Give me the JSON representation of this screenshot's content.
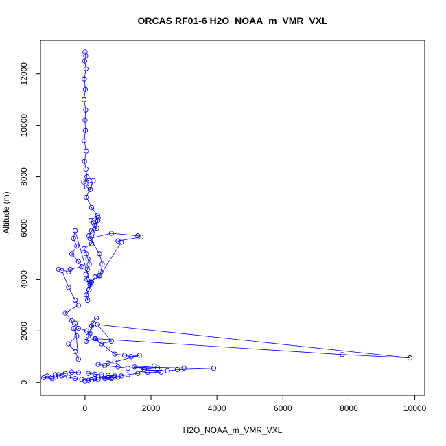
{
  "chart_data": {
    "type": "scatter",
    "title": "ORCAS RF01-6 H2O_NOAA_m_VMR_VXL",
    "xlabel": "H2O_NOAA_m_VMR_VXL",
    "ylabel": "Altitude (m)",
    "xlim": [
      -1350,
      10300
    ],
    "ylim": [
      -500,
      13300
    ],
    "xticks": [
      0,
      2000,
      4000,
      6000,
      8000,
      10000
    ],
    "yticks": [
      0,
      2000,
      4000,
      6000,
      8000,
      10000,
      12000
    ],
    "xtick_labels": [
      "0",
      "2000",
      "4000",
      "6000",
      "8000",
      "10000"
    ],
    "ytick_labels": [
      "0",
      "2000",
      "4000",
      "6000",
      "8000",
      "10000",
      "12000"
    ],
    "grid": false,
    "legend": "none",
    "marker": "open-circle",
    "connect_points": true,
    "colors": {
      "series": "#0000ff",
      "axis": "#000000"
    },
    "series": [
      {
        "x": [
          0,
          20,
          -10,
          30,
          -20,
          10,
          -30,
          20,
          0,
          15,
          -25,
          40,
          -15,
          30,
          60,
          -40,
          120,
          50,
          160,
          250,
          40,
          200,
          380,
          180,
          260,
          300,
          200,
          390,
          120,
          360,
          400,
          200,
          -30,
          40,
          90,
          130,
          70,
          30,
          60,
          150,
          120,
          40,
          80,
          120,
          200,
          300,
          420,
          480,
          520,
          440,
          150,
          800,
          1600,
          1700,
          1000,
          1100,
          450,
          150,
          -300,
          -350,
          -250,
          -400,
          -200,
          -100,
          -450,
          -500,
          -800,
          -700,
          -500,
          -300,
          -200,
          -600,
          -400,
          -350,
          -250,
          -500,
          -300,
          -200,
          -300,
          -200,
          50,
          150,
          250,
          350,
          200,
          100,
          40,
          300,
          500,
          800,
          380,
          9850,
          7800,
          320,
          700,
          900,
          1200,
          1400,
          1650,
          900,
          700,
          400,
          600,
          1000,
          1300,
          2100,
          2200,
          1700,
          2500,
          2800,
          3900,
          3000,
          1500,
          1800,
          2300,
          1900,
          1600,
          1300,
          1100,
          900,
          700,
          600,
          800,
          400,
          300,
          200,
          100,
          -100,
          -300,
          -500,
          -700,
          -900,
          -1000,
          -1150,
          -1250,
          -1000,
          -900,
          -800,
          -600,
          -400,
          -200,
          100,
          300,
          500,
          700,
          900,
          1000,
          800,
          600,
          400,
          200,
          0
        ],
        "y": [
          12850,
          12700,
          12500,
          12200,
          11800,
          11400,
          11000,
          10600,
          10200,
          9800,
          9400,
          9000,
          8600,
          8300,
          8000,
          7800,
          7850,
          7600,
          7500,
          7850,
          7200,
          6800,
          6500,
          6300,
          6200,
          6100,
          5900,
          6300,
          5700,
          6000,
          6400,
          5400,
          5200,
          5000,
          4800,
          4600,
          4400,
          4200,
          4000,
          3800,
          3600,
          3400,
          3200,
          3600,
          3900,
          4100,
          4150,
          4300,
          4600,
          5000,
          5600,
          5800,
          5700,
          5650,
          5500,
          5450,
          4150,
          3900,
          5900,
          5600,
          5300,
          5000,
          4700,
          4500,
          4400,
          4300,
          4400,
          4350,
          3700,
          3200,
          3000,
          2700,
          2400,
          2100,
          1800,
          1500,
          1200,
          900,
          2300,
          2100,
          2000,
          1900,
          2300,
          2500,
          2200,
          1800,
          1600,
          1700,
          1500,
          1600,
          2250,
          950,
          1080,
          1700,
          1300,
          1100,
          1050,
          1000,
          1050,
          800,
          750,
          700,
          650,
          600,
          550,
          640,
          560,
          500,
          450,
          500,
          550,
          560,
          600,
          500,
          400,
          400,
          350,
          300,
          250,
          200,
          180,
          200,
          150,
          200,
          150,
          100,
          80,
          120,
          150,
          200,
          250,
          300,
          200,
          250,
          180,
          150,
          200,
          300,
          350,
          400,
          380,
          350,
          320,
          300,
          280,
          250,
          200,
          180,
          150,
          120,
          100,
          60
        ]
      }
    ]
  }
}
